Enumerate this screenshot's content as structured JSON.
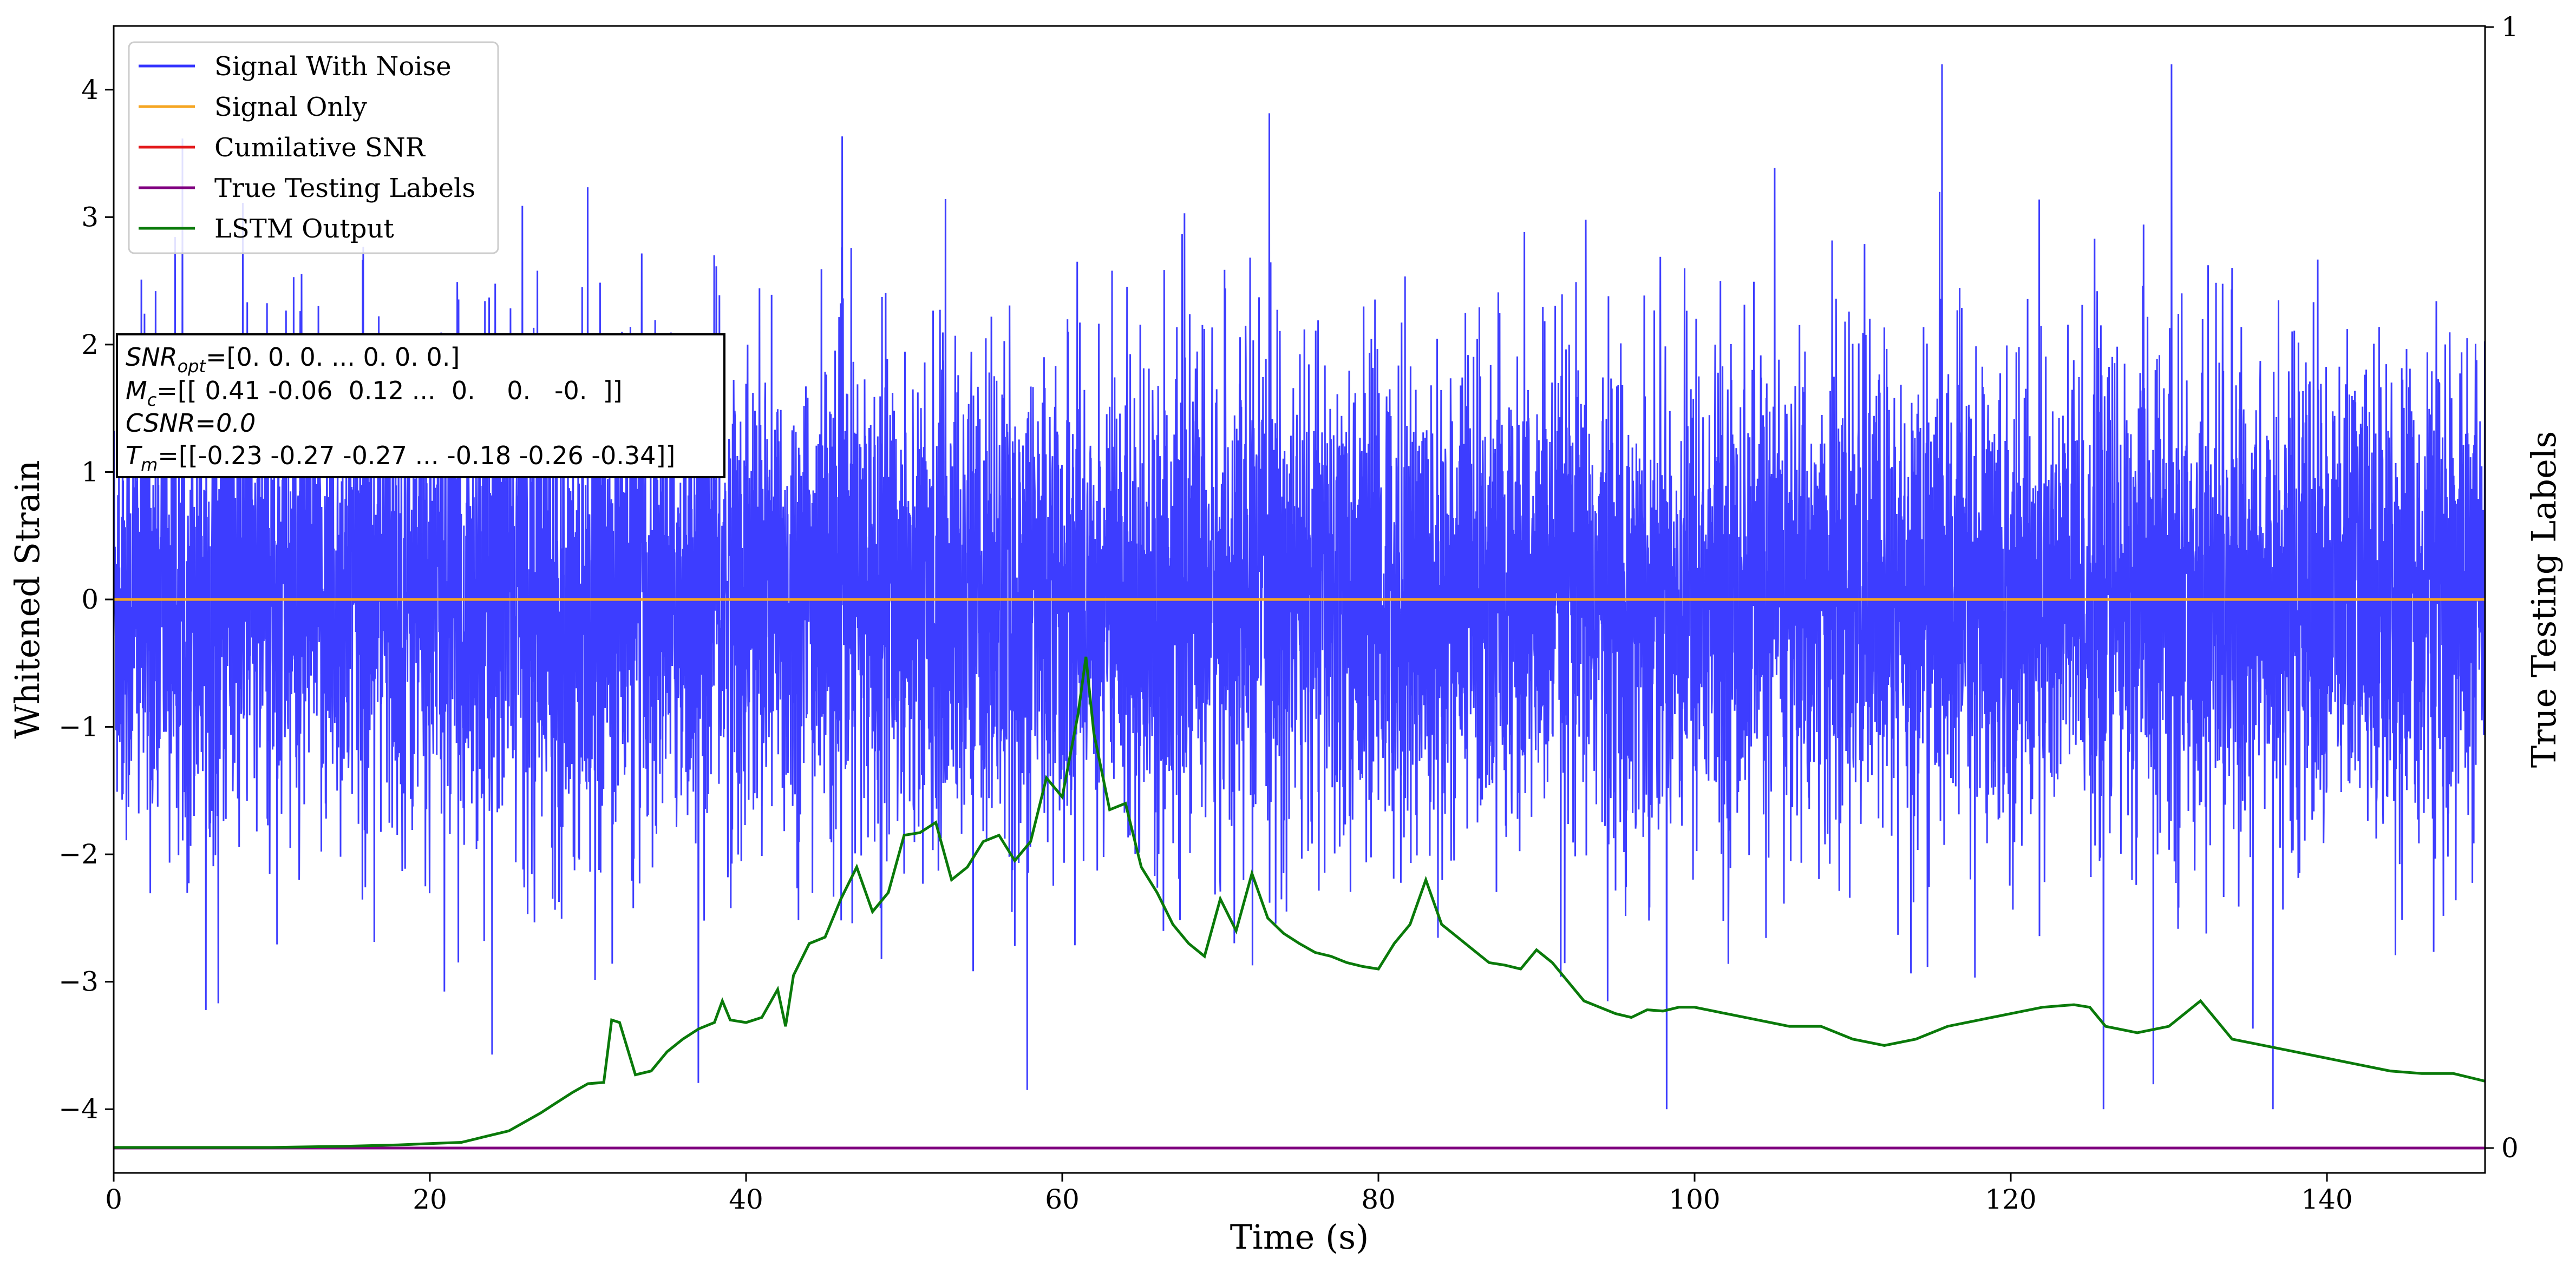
{
  "chart_data": {
    "type": "line",
    "title": "",
    "xlabel": "Time (s)",
    "ylabel": "Whitened Strain",
    "y2label": "True Testing Labels",
    "xlim": [
      0,
      150
    ],
    "ylim": [
      -4.5,
      4.5
    ],
    "y2lim": [
      0,
      1
    ],
    "x_ticks": [
      0,
      20,
      40,
      60,
      80,
      100,
      120,
      140
    ],
    "y_ticks": [
      -4,
      -3,
      -2,
      -1,
      0,
      1,
      2,
      3,
      4
    ],
    "y2_ticks": [
      0,
      1
    ],
    "grid": false,
    "legend_position": "top-left",
    "series": [
      {
        "name": "Signal With Noise",
        "color": "#3333ff",
        "axis": "left",
        "note_type": "dense noise",
        "typical_range": [
          -2.5,
          2.5
        ],
        "peak_max": 4.2,
        "peak_min": -4.0
      },
      {
        "name": "Signal Only",
        "color": "#f5a623",
        "axis": "left",
        "x": [
          0,
          150
        ],
        "y": [
          0,
          0
        ]
      },
      {
        "name": "Cumilative SNR",
        "color": "#e31a1c",
        "axis": "left",
        "x": [],
        "y": []
      },
      {
        "name": "True Testing Labels",
        "color": "#800080",
        "axis": "right",
        "x": [
          0,
          150
        ],
        "y": [
          0,
          0
        ]
      },
      {
        "name": "LSTM Output",
        "color": "#0a7a0a",
        "axis": "left",
        "x": [
          0,
          10,
          15,
          18,
          20,
          22,
          23,
          24,
          25,
          26,
          27,
          28,
          29,
          30,
          31,
          31.5,
          32,
          33,
          34,
          35,
          36,
          37,
          38,
          38.5,
          39,
          40,
          41,
          42,
          42.5,
          43,
          44,
          45,
          46,
          47,
          48,
          49,
          50,
          51,
          52,
          53,
          54,
          55,
          56,
          57,
          58,
          59,
          60,
          61,
          61.5,
          62,
          63,
          64,
          65,
          66,
          67,
          68,
          69,
          70,
          71,
          72,
          73,
          74,
          75,
          76,
          77,
          78,
          79,
          80,
          81,
          82,
          83,
          84,
          85,
          86,
          87,
          88,
          89,
          90,
          91,
          92,
          93,
          94,
          95,
          96,
          97,
          98,
          99,
          100,
          102,
          104,
          106,
          108,
          110,
          112,
          114,
          116,
          118,
          120,
          122,
          124,
          125,
          126,
          128,
          130,
          132,
          133,
          134,
          136,
          138,
          140,
          142,
          144,
          146,
          148,
          150
        ],
        "y": [
          -4.3,
          -4.3,
          -4.29,
          -4.28,
          -4.27,
          -4.26,
          -4.23,
          -4.2,
          -4.17,
          -4.1,
          -4.03,
          -3.95,
          -3.87,
          -3.8,
          -3.79,
          -3.3,
          -3.32,
          -3.73,
          -3.7,
          -3.55,
          -3.45,
          -3.37,
          -3.32,
          -3.15,
          -3.3,
          -3.32,
          -3.28,
          -3.06,
          -3.35,
          -2.95,
          -2.7,
          -2.65,
          -2.35,
          -2.1,
          -2.45,
          -2.3,
          -1.85,
          -1.83,
          -1.75,
          -2.2,
          -2.1,
          -1.9,
          -1.85,
          -2.05,
          -1.9,
          -1.4,
          -1.55,
          -0.9,
          -0.45,
          -1.05,
          -1.65,
          -1.6,
          -2.1,
          -2.3,
          -2.55,
          -2.7,
          -2.8,
          -2.35,
          -2.6,
          -2.15,
          -2.5,
          -2.62,
          -2.7,
          -2.77,
          -2.8,
          -2.85,
          -2.88,
          -2.9,
          -2.7,
          -2.55,
          -2.2,
          -2.55,
          -2.65,
          -2.75,
          -2.85,
          -2.87,
          -2.9,
          -2.75,
          -2.85,
          -3.0,
          -3.15,
          -3.2,
          -3.25,
          -3.28,
          -3.22,
          -3.23,
          -3.2,
          -3.2,
          -3.25,
          -3.3,
          -3.35,
          -3.35,
          -3.45,
          -3.5,
          -3.45,
          -3.35,
          -3.3,
          -3.25,
          -3.2,
          -3.18,
          -3.2,
          -3.35,
          -3.4,
          -3.35,
          -3.15,
          -3.3,
          -3.45,
          -3.5,
          -3.55,
          -3.6,
          -3.65,
          -3.7,
          -3.72,
          -3.72,
          -3.78
        ]
      }
    ]
  },
  "annotation": {
    "line1_base": "SNR",
    "line1_sub": "opt",
    "line1_rest": "=[0. 0. 0. ... 0. 0. 0.]",
    "line2_base": "M",
    "line2_sub": "c",
    "line2_rest": "=[[ 0.41 -0.06  0.12 ...  0.    0.   -0.  ]]",
    "line3": "CSNR=0.0",
    "line4_base": "T",
    "line4_sub": "m",
    "line4_rest": "=[[-0.23 -0.27 -0.27 ... -0.18 -0.26 -0.34]]"
  }
}
